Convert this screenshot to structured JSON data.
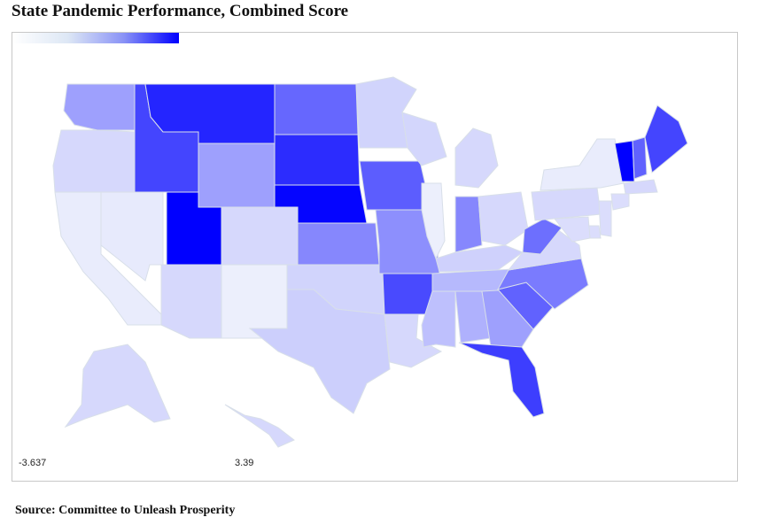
{
  "title": "State Pandemic Performance, Combined Score",
  "source": "Source: Committee to Unleash Prosperity",
  "legend": {
    "min_label": "-3.637",
    "max_label": "3.39",
    "colors": [
      "#ffffff",
      "#dde7f5",
      "#8a93f6",
      "#0000ff"
    ]
  },
  "map": {
    "region": "United States",
    "color_low": "#f3f6fc",
    "color_high": "#0000ff",
    "border_color": "#d8dfe9",
    "states": [
      {
        "id": "WA",
        "level": 0.35
      },
      {
        "id": "OR",
        "level": 0.12
      },
      {
        "id": "CA",
        "level": 0.04
      },
      {
        "id": "NV",
        "level": 0.05
      },
      {
        "id": "ID",
        "level": 0.72
      },
      {
        "id": "MT",
        "level": 0.85
      },
      {
        "id": "WY",
        "level": 0.35
      },
      {
        "id": "UT",
        "level": 1.0
      },
      {
        "id": "AZ",
        "level": 0.12
      },
      {
        "id": "CO",
        "level": 0.12
      },
      {
        "id": "NM",
        "level": 0.03
      },
      {
        "id": "ND",
        "level": 0.58
      },
      {
        "id": "SD",
        "level": 0.82
      },
      {
        "id": "NE",
        "level": 0.98
      },
      {
        "id": "KS",
        "level": 0.45
      },
      {
        "id": "OK",
        "level": 0.14
      },
      {
        "id": "TX",
        "level": 0.16
      },
      {
        "id": "MN",
        "level": 0.14
      },
      {
        "id": "IA",
        "level": 0.62
      },
      {
        "id": "MO",
        "level": 0.42
      },
      {
        "id": "AR",
        "level": 0.7
      },
      {
        "id": "LA",
        "level": 0.12
      },
      {
        "id": "WI",
        "level": 0.13
      },
      {
        "id": "IL",
        "level": 0.03
      },
      {
        "id": "MI",
        "level": 0.12
      },
      {
        "id": "IN",
        "level": 0.45
      },
      {
        "id": "OH",
        "level": 0.12
      },
      {
        "id": "KY",
        "level": 0.15
      },
      {
        "id": "TN",
        "level": 0.25
      },
      {
        "id": "MS",
        "level": 0.22
      },
      {
        "id": "AL",
        "level": 0.28
      },
      {
        "id": "GA",
        "level": 0.35
      },
      {
        "id": "FL",
        "level": 0.75
      },
      {
        "id": "SC",
        "level": 0.6
      },
      {
        "id": "NC",
        "level": 0.5
      },
      {
        "id": "VA",
        "level": 0.12
      },
      {
        "id": "WV",
        "level": 0.55
      },
      {
        "id": "PA",
        "level": 0.12
      },
      {
        "id": "NY",
        "level": 0.04
      },
      {
        "id": "VT",
        "level": 1.0
      },
      {
        "id": "NH",
        "level": 0.6
      },
      {
        "id": "ME",
        "level": 0.72
      },
      {
        "id": "MA",
        "level": 0.12
      },
      {
        "id": "CT",
        "level": 0.1
      },
      {
        "id": "NJ",
        "level": 0.1
      },
      {
        "id": "DE",
        "level": 0.1
      },
      {
        "id": "MD",
        "level": 0.1
      },
      {
        "id": "AK",
        "level": 0.12
      },
      {
        "id": "HI",
        "level": 0.12
      }
    ]
  }
}
